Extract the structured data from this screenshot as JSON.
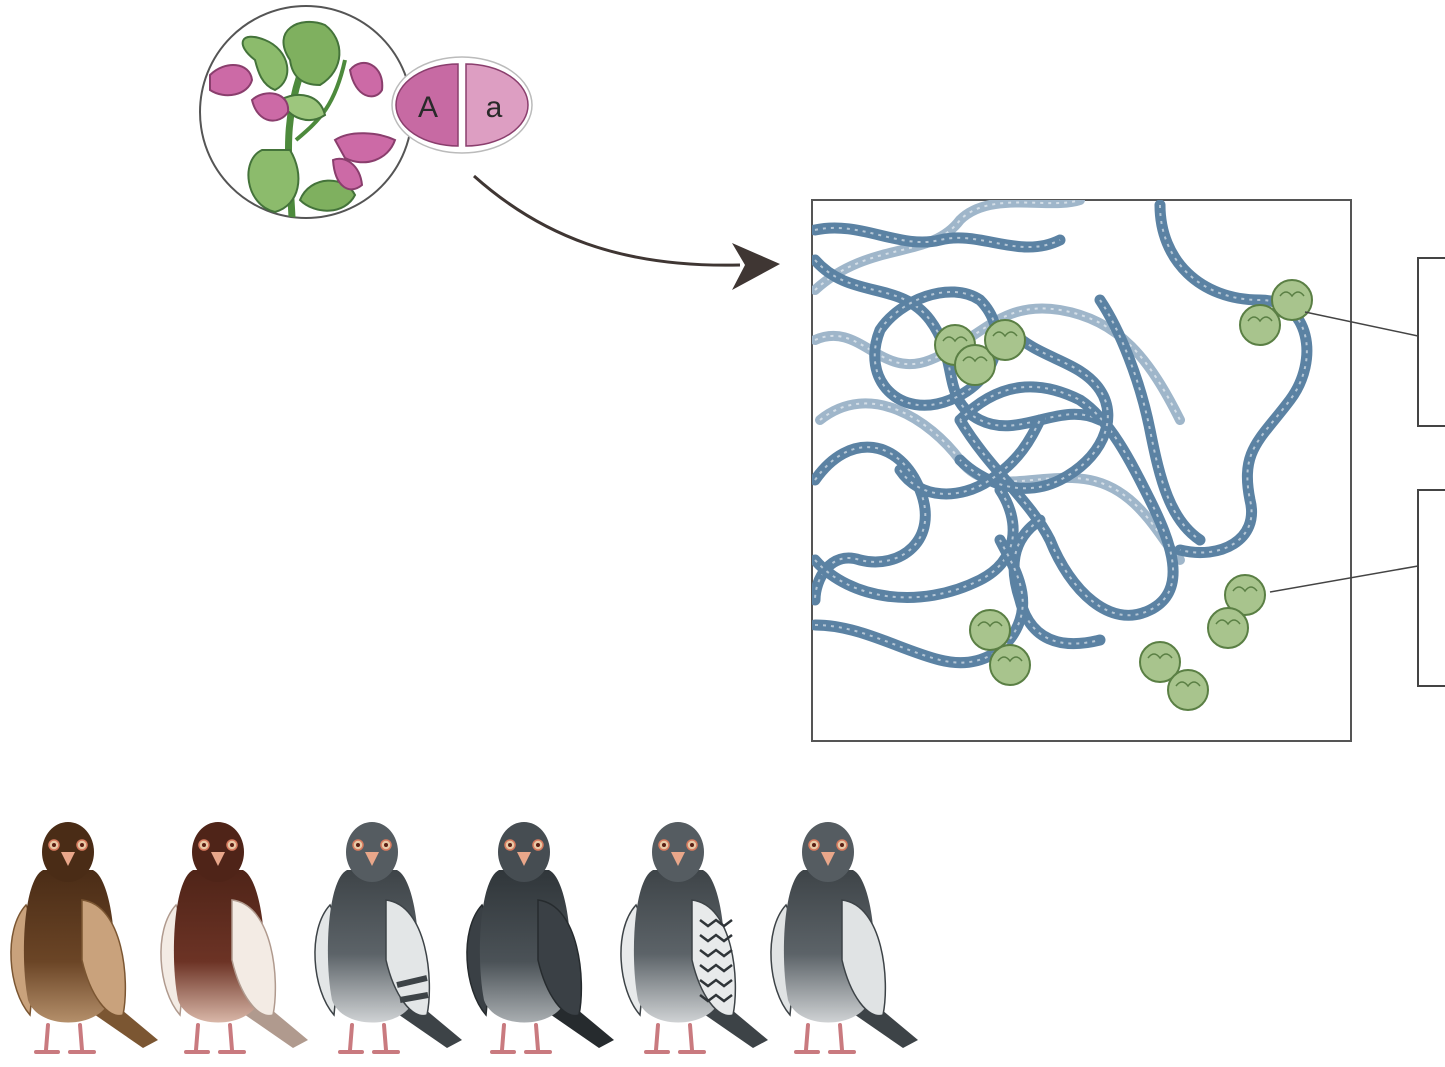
{
  "alleles": {
    "dominant": "A",
    "recessive": "a"
  },
  "colors": {
    "dna": "#5b82a3",
    "dna_light": "#9fb6ca",
    "histone": "#a8c48d",
    "histone_outline": "#5a7f44",
    "allele_dark": "#c76aa3",
    "allele_light": "#dd9ec2",
    "arrow": "#3f3633",
    "frame": "#555555"
  },
  "icons": {
    "plant": "pea-plant-icon",
    "pigeons": [
      "brown-pigeon-icon",
      "red-pigeon-icon",
      "gray-pigeon-icon",
      "dark-pigeon-icon",
      "checkered-pigeon-icon",
      "light-pigeon-icon"
    ]
  }
}
